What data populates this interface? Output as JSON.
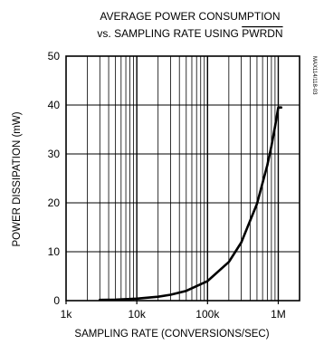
{
  "chart_data": {
    "type": "line",
    "title_line1": "AVERAGE POWER CONSUMPTION",
    "title_line2_prefix": "vs. SAMPLING RATE USING ",
    "title_line2_overbar": "PWRDN",
    "xlabel": "SAMPLING RATE (CONVERSIONS/SEC)",
    "ylabel": "POWER DISSIPATION (mW)",
    "side_code": "MAX114/118-03",
    "x_scale": "log",
    "xlim": [
      1000,
      2000000
    ],
    "ylim": [
      0,
      50
    ],
    "x_ticks": [
      {
        "value": 1000,
        "label": "1k"
      },
      {
        "value": 10000,
        "label": "10k"
      },
      {
        "value": 100000,
        "label": "100k"
      },
      {
        "value": 1000000,
        "label": "1M"
      }
    ],
    "y_ticks": [
      {
        "value": 0,
        "label": "0"
      },
      {
        "value": 10,
        "label": "10"
      },
      {
        "value": 20,
        "label": "20"
      },
      {
        "value": 30,
        "label": "30"
      },
      {
        "value": 40,
        "label": "40"
      },
      {
        "value": 50,
        "label": "50"
      }
    ],
    "grid": true,
    "series": [
      {
        "x": [
          3000,
          5000,
          10000,
          20000,
          30000,
          50000,
          100000,
          200000,
          300000,
          500000,
          700000,
          800000,
          900000,
          1000000,
          1050000,
          1100000
        ],
        "y": [
          0.15,
          0.2,
          0.4,
          0.8,
          1.2,
          2.0,
          4.0,
          7.9,
          11.9,
          19.8,
          27.7,
          31.6,
          35.6,
          39.5,
          39.5,
          39.5
        ]
      }
    ]
  }
}
